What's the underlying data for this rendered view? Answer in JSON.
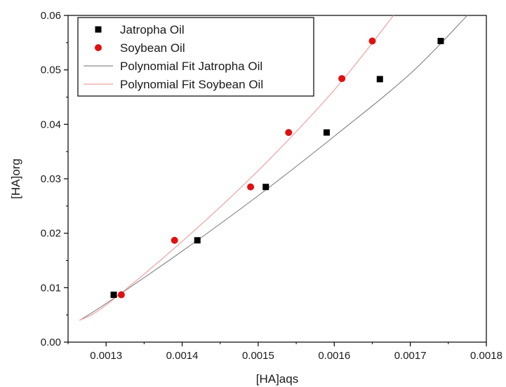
{
  "chart_data": {
    "type": "scatter",
    "xlabel": "[HA]aqs",
    "ylabel": "[HA]org",
    "xlim": [
      0.00125,
      0.0018
    ],
    "ylim": [
      0,
      0.06
    ],
    "xticks": [
      0.0013,
      0.0014,
      0.0015,
      0.0016,
      0.0017,
      0.0018
    ],
    "xtick_labels": [
      "0.0013",
      "0.0014",
      "0.0015",
      "0.0016",
      "0.0017",
      "0.0018"
    ],
    "yticks": [
      0.0,
      0.01,
      0.02,
      0.03,
      0.04,
      0.05,
      0.06
    ],
    "ytick_labels": [
      "0.00",
      "0.01",
      "0.02",
      "0.03",
      "0.04",
      "0.05",
      "0.06"
    ],
    "grid": false,
    "legend_position": "top-left",
    "series": [
      {
        "name": "Jatropha Oil",
        "kind": "points",
        "marker": "square",
        "color": "#000000",
        "x": [
          0.00131,
          0.00142,
          0.00151,
          0.00159,
          0.00166,
          0.00174
        ],
        "y": [
          0.0087,
          0.0187,
          0.0285,
          0.0385,
          0.0483,
          0.0553
        ]
      },
      {
        "name": "Soybean Oil",
        "kind": "points",
        "marker": "circle",
        "color": "#e01010",
        "x": [
          0.00132,
          0.00139,
          0.00149,
          0.00154,
          0.00161,
          0.00165
        ],
        "y": [
          0.0087,
          0.0187,
          0.0285,
          0.0385,
          0.0484,
          0.0553
        ]
      },
      {
        "name": "Polynomial Fit Jatropha Oil",
        "kind": "line",
        "color": "#8a8a8a",
        "x": [
          0.001265,
          0.0013,
          0.0014,
          0.0015,
          0.0016,
          0.0017,
          0.001775
        ],
        "y": [
          0.004,
          0.0071,
          0.0167,
          0.0269,
          0.0378,
          0.0493,
          0.06
        ]
      },
      {
        "name": "Polynomial Fit Soybean Oil",
        "kind": "line",
        "color": "#f0a0a0",
        "x": [
          0.001265,
          0.0013,
          0.0014,
          0.0015,
          0.0016,
          0.001678
        ],
        "y": [
          0.004,
          0.0068,
          0.0185,
          0.0315,
          0.0463,
          0.06
        ]
      }
    ]
  }
}
